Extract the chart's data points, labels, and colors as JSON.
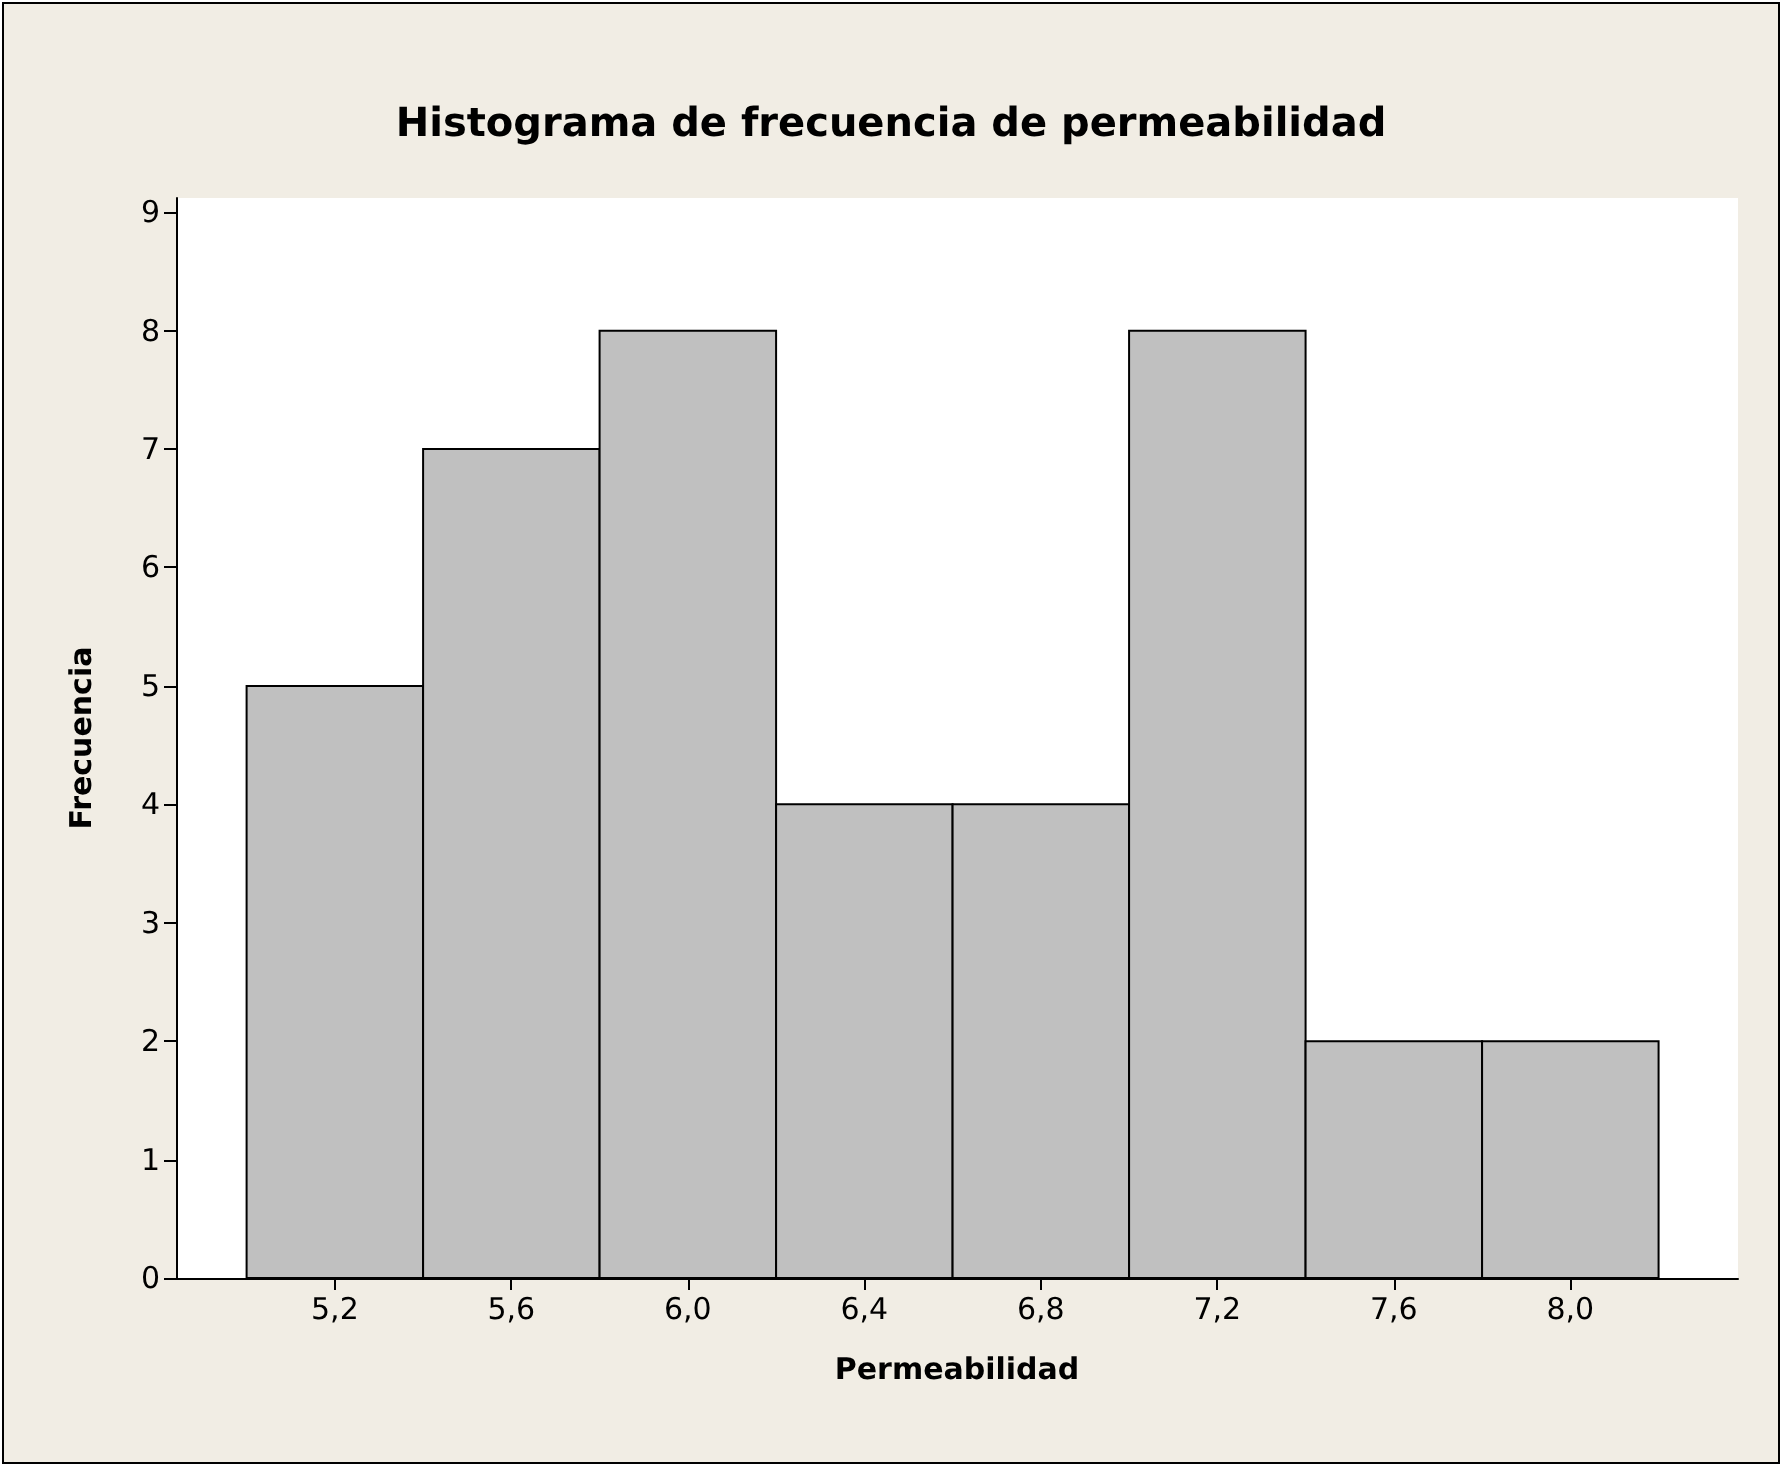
{
  "chart_data": {
    "type": "histogram",
    "title": "Histograma de frecuencia de permeabilidad",
    "xlabel": "Permeabilidad",
    "ylabel": "Frecuencia",
    "bins": [
      5.0,
      5.4,
      5.8,
      6.2,
      6.6,
      7.0,
      7.4,
      7.8,
      8.2
    ],
    "values": [
      5,
      7,
      8,
      4,
      4,
      8,
      2,
      2
    ],
    "color": "#c0c0c0",
    "xlim": [
      4.84,
      8.38
    ],
    "xticks": [
      {
        "value": 5.2,
        "label": "5,2"
      },
      {
        "value": 5.6,
        "label": "5,6"
      },
      {
        "value": 6.0,
        "label": "6,0"
      },
      {
        "value": 6.4,
        "label": "6,4"
      },
      {
        "value": 6.8,
        "label": "6,8"
      },
      {
        "value": 7.2,
        "label": "7,2"
      },
      {
        "value": 7.6,
        "label": "7,6"
      },
      {
        "value": 8.0,
        "label": "8,0"
      }
    ],
    "ylim": [
      0,
      9.12
    ],
    "yticks": [
      0,
      1,
      2,
      3,
      4,
      5,
      6,
      7,
      8,
      9
    ],
    "grid": false
  }
}
